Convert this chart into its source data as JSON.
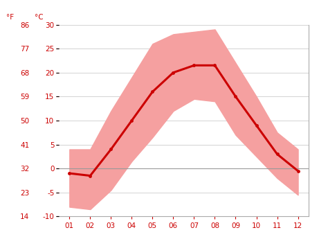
{
  "months": [
    1,
    2,
    3,
    4,
    5,
    6,
    7,
    8,
    9,
    10,
    11,
    12
  ],
  "month_labels": [
    "01",
    "02",
    "03",
    "04",
    "05",
    "06",
    "07",
    "08",
    "09",
    "10",
    "11",
    "12"
  ],
  "avg_temp_c": [
    -1.0,
    -1.5,
    4.0,
    10.0,
    16.0,
    20.0,
    21.5,
    21.5,
    15.0,
    9.0,
    3.0,
    -0.5
  ],
  "band_upper": [
    4.0,
    4.0,
    12.0,
    19.0,
    26.0,
    28.0,
    28.5,
    29.0,
    22.0,
    15.0,
    7.5,
    4.0
  ],
  "band_lower": [
    -8.0,
    -8.5,
    -4.5,
    1.5,
    6.5,
    12.0,
    14.5,
    14.0,
    7.0,
    2.5,
    -2.0,
    -5.5
  ],
  "ylim_c": [
    -10,
    30
  ],
  "yticks_c": [
    -10,
    -5,
    0,
    5,
    10,
    15,
    20,
    25,
    30
  ],
  "yticks_f": [
    14,
    23,
    32,
    41,
    50,
    59,
    68,
    77,
    86
  ],
  "line_color": "#cc0000",
  "band_color": "#f5a0a0",
  "zero_line_color": "#999999",
  "grid_color": "#cccccc",
  "tick_color": "#cc0000",
  "bg_color": "#ffffff",
  "label_f": "°F",
  "label_c": "°C",
  "line_width": 2.2,
  "marker": "o",
  "marker_size": 3.5,
  "font_size": 7.5
}
